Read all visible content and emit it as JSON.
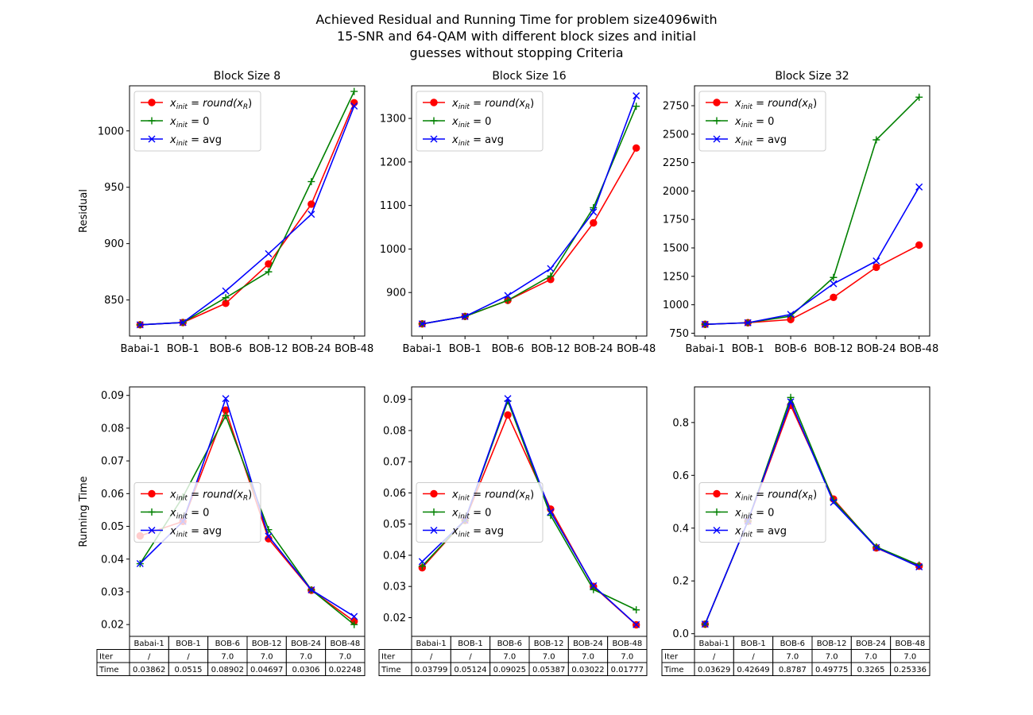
{
  "figure": {
    "title_lines": [
      "Achieved Residual and Running Time for problem size4096with",
      "15-SNR and 64-QAM with different block sizes and initial",
      "guesses without stopping Criteria"
    ]
  },
  "legend_labels": [
    "x_init = round(x_R)",
    "x_init = 0",
    "x_init = avg"
  ],
  "series_colors": [
    "#ff0000",
    "#008000",
    "#0000ff"
  ],
  "series_markers": [
    "circle",
    "plus",
    "x"
  ],
  "categories": [
    "Babai-1",
    "BOB-1",
    "BOB-6",
    "BOB-12",
    "BOB-24",
    "BOB-48"
  ],
  "chart_data": [
    {
      "type": "line",
      "title": "Block Size 8",
      "xlabel": "",
      "ylabel": "Residual",
      "categories": [
        "Babai-1",
        "BOB-1",
        "BOB-6",
        "BOB-12",
        "BOB-24",
        "BOB-48"
      ],
      "ylim": [
        818,
        1040
      ],
      "yticks": [
        850,
        900,
        950,
        1000
      ],
      "legend": "upper left",
      "series": [
        {
          "name": "x_init = round(x_R)",
          "values": [
            828,
            830,
            847,
            882,
            935,
            1025
          ]
        },
        {
          "name": "x_init = 0",
          "values": [
            828,
            830,
            852,
            875,
            955,
            1035
          ]
        },
        {
          "name": "x_init = avg",
          "values": [
            828,
            830,
            858,
            891,
            926,
            1022
          ]
        }
      ]
    },
    {
      "type": "line",
      "title": "Block Size 16",
      "xlabel": "",
      "ylabel": "",
      "categories": [
        "Babai-1",
        "BOB-1",
        "BOB-6",
        "BOB-12",
        "BOB-24",
        "BOB-48"
      ],
      "ylim": [
        800,
        1375
      ],
      "yticks": [
        900,
        1000,
        1100,
        1200,
        1300
      ],
      "legend": "upper left",
      "series": [
        {
          "name": "x_init = round(x_R)",
          "values": [
            828,
            845,
            882,
            930,
            1060,
            1232
          ]
        },
        {
          "name": "x_init = 0",
          "values": [
            828,
            845,
            882,
            938,
            1095,
            1328
          ]
        },
        {
          "name": "x_init = avg",
          "values": [
            828,
            845,
            893,
            955,
            1085,
            1352
          ]
        }
      ]
    },
    {
      "type": "line",
      "title": "Block Size 32",
      "xlabel": "",
      "ylabel": "",
      "categories": [
        "Babai-1",
        "BOB-1",
        "BOB-6",
        "BOB-12",
        "BOB-24",
        "BOB-48"
      ],
      "ylim": [
        725,
        2925
      ],
      "yticks": [
        750,
        1000,
        1250,
        1500,
        1750,
        2000,
        2250,
        2500,
        2750
      ],
      "legend": "upper left",
      "series": [
        {
          "name": "x_init = round(x_R)",
          "values": [
            828,
            842,
            870,
            1065,
            1330,
            1525
          ]
        },
        {
          "name": "x_init = 0",
          "values": [
            828,
            842,
            900,
            1240,
            2450,
            2825
          ]
        },
        {
          "name": "x_init = avg",
          "values": [
            828,
            842,
            915,
            1185,
            1385,
            2035
          ]
        }
      ]
    },
    {
      "type": "line",
      "title": "",
      "xlabel": "",
      "ylabel": "Running Time",
      "categories": [
        "Babai-1",
        "BOB-1",
        "BOB-6",
        "BOB-12",
        "BOB-24",
        "BOB-48"
      ],
      "ylim": [
        0.0164,
        0.0926
      ],
      "yticks": [
        0.02,
        0.03,
        0.04,
        0.05,
        0.06,
        0.07,
        0.08,
        0.09
      ],
      "legend": "center left",
      "series": [
        {
          "name": "x_init = round(x_R)",
          "values": [
            0.0471,
            0.0515,
            0.0855,
            0.0462,
            0.0305,
            0.021
          ]
        },
        {
          "name": "x_init = 0",
          "values": [
            0.0386,
            0.059,
            0.0838,
            0.049,
            0.0306,
            0.02
          ]
        },
        {
          "name": "x_init = avg",
          "values": [
            0.03862,
            0.0515,
            0.08902,
            0.04697,
            0.0306,
            0.02248
          ]
        }
      ],
      "table": {
        "col_labels": [
          "Babai-1",
          "BOB-1",
          "BOB-6",
          "BOB-12",
          "BOB-24",
          "BOB-48"
        ],
        "rows": [
          {
            "label": "Iter",
            "cells": [
              "/",
              "/",
              "7.0",
              "7.0",
              "7.0",
              "7.0"
            ]
          },
          {
            "label": "Time",
            "cells": [
              "0.03862",
              "0.0515",
              "0.08902",
              "0.04697",
              "0.0306",
              "0.02248"
            ]
          }
        ]
      }
    },
    {
      "type": "line",
      "title": "",
      "xlabel": "",
      "ylabel": "",
      "categories": [
        "Babai-1",
        "BOB-1",
        "BOB-6",
        "BOB-12",
        "BOB-24",
        "BOB-48"
      ],
      "ylim": [
        0.014,
        0.094
      ],
      "yticks": [
        0.02,
        0.03,
        0.04,
        0.05,
        0.06,
        0.07,
        0.08,
        0.09
      ],
      "legend": "center left",
      "series": [
        {
          "name": "x_init = round(x_R)",
          "values": [
            0.036,
            0.0512,
            0.085,
            0.0548,
            0.03,
            0.0177
          ]
        },
        {
          "name": "x_init = 0",
          "values": [
            0.0365,
            0.0512,
            0.0895,
            0.0528,
            0.029,
            0.0225
          ]
        },
        {
          "name": "x_init = avg",
          "values": [
            0.03799,
            0.05124,
            0.09025,
            0.05387,
            0.03022,
            0.01777
          ]
        }
      ],
      "table": {
        "col_labels": [
          "Babai-1",
          "BOB-1",
          "BOB-6",
          "BOB-12",
          "BOB-24",
          "BOB-48"
        ],
        "rows": [
          {
            "label": "Iter",
            "cells": [
              "/",
              "/",
              "7.0",
              "7.0",
              "7.0",
              "7.0"
            ]
          },
          {
            "label": "Time",
            "cells": [
              "0.03799",
              "0.05124",
              "0.09025",
              "0.05387",
              "0.03022",
              "0.01777"
            ]
          }
        ]
      }
    },
    {
      "type": "line",
      "title": "",
      "xlabel": "",
      "ylabel": "",
      "categories": [
        "Babai-1",
        "BOB-1",
        "BOB-6",
        "BOB-12",
        "BOB-24",
        "BOB-48"
      ],
      "ylim": [
        -0.01,
        0.935
      ],
      "yticks": [
        0.0,
        0.2,
        0.4,
        0.6,
        0.8
      ],
      "legend": "center left",
      "series": [
        {
          "name": "x_init = round(x_R)",
          "values": [
            0.036,
            0.426,
            0.865,
            0.51,
            0.325,
            0.256
          ]
        },
        {
          "name": "x_init = 0",
          "values": [
            0.036,
            0.426,
            0.895,
            0.505,
            0.329,
            0.26
          ]
        },
        {
          "name": "x_init = avg",
          "values": [
            0.03629,
            0.42649,
            0.8787,
            0.49775,
            0.3265,
            0.25336
          ]
        }
      ],
      "table": {
        "col_labels": [
          "Babai-1",
          "BOB-1",
          "BOB-6",
          "BOB-12",
          "BOB-24",
          "BOB-48"
        ],
        "rows": [
          {
            "label": "Iter",
            "cells": [
              "/",
              "/",
              "7.0",
              "7.0",
              "7.0",
              "7.0"
            ]
          },
          {
            "label": "Time",
            "cells": [
              "0.03629",
              "0.42649",
              "0.8787",
              "0.49775",
              "0.3265",
              "0.25336"
            ]
          }
        ]
      }
    }
  ]
}
